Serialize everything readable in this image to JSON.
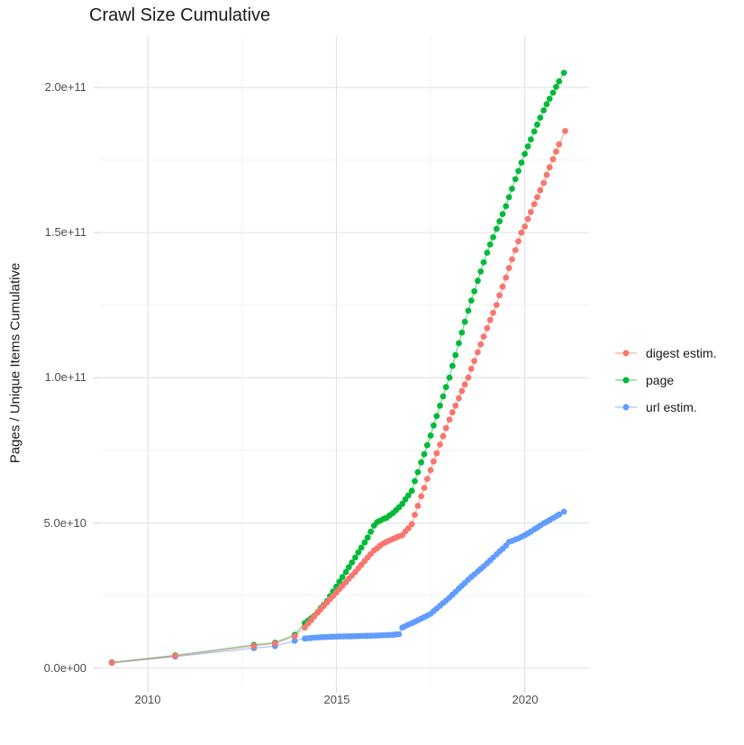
{
  "chart_data": {
    "type": "scatter",
    "title": "Crawl Size Cumulative",
    "xlabel": "",
    "ylabel": "Pages / Unique Items Cumulative",
    "value_unit": "billions (1e9) of pages / unique items",
    "xlim": [
      2008.7,
      2021.73
    ],
    "ylim_e9": [
      -6.6,
      217.7
    ],
    "grid": "on",
    "legend_position": "right",
    "x_ticks": [
      {
        "label": "2010",
        "v": 2010
      },
      {
        "label": "2015",
        "v": 2015
      },
      {
        "label": "2020",
        "v": 2020
      }
    ],
    "y_ticks": [
      {
        "label": "0.0e+00",
        "v": 0
      },
      {
        "label": "5.0e+10",
        "v": 50
      },
      {
        "label": "1.0e+11",
        "v": 100
      },
      {
        "label": "1.5e+11",
        "v": 150
      },
      {
        "label": "2.0e+11",
        "v": 200
      }
    ],
    "series": [
      {
        "name": "digest estim.",
        "color": "#F8766D",
        "points": [
          [
            2009.04,
            1.9
          ],
          [
            2010.72,
            4.2
          ],
          [
            2012.81,
            7.6
          ],
          [
            2013.37,
            8.5
          ],
          [
            2013.89,
            11.0
          ],
          [
            2014.16,
            14.0
          ],
          [
            2014.25,
            15.4
          ],
          [
            2014.33,
            16.6
          ],
          [
            2014.41,
            17.8
          ],
          [
            2014.5,
            19.1
          ],
          [
            2014.58,
            20.3
          ],
          [
            2014.66,
            21.4
          ],
          [
            2014.75,
            22.6
          ],
          [
            2014.83,
            23.8
          ],
          [
            2014.91,
            24.9
          ],
          [
            2015.0,
            26.1
          ],
          [
            2015.08,
            27.3
          ],
          [
            2015.16,
            28.4
          ],
          [
            2015.25,
            29.6
          ],
          [
            2015.33,
            30.8
          ],
          [
            2015.41,
            31.9
          ],
          [
            2015.5,
            33.1
          ],
          [
            2015.58,
            34.4
          ],
          [
            2015.66,
            35.6
          ],
          [
            2015.75,
            36.9
          ],
          [
            2015.83,
            38.1
          ],
          [
            2015.91,
            39.3
          ],
          [
            2016.0,
            40.6
          ],
          [
            2016.08,
            41.3
          ],
          [
            2016.16,
            42.2
          ],
          [
            2016.25,
            43.0
          ],
          [
            2016.33,
            43.5
          ],
          [
            2016.41,
            44.0
          ],
          [
            2016.5,
            44.5
          ],
          [
            2016.58,
            45.0
          ],
          [
            2016.66,
            45.4
          ],
          [
            2016.75,
            45.8
          ],
          [
            2016.83,
            47.1
          ],
          [
            2016.91,
            48.2
          ],
          [
            2017.0,
            49.6
          ],
          [
            2017.08,
            52.8
          ],
          [
            2017.16,
            55.9
          ],
          [
            2017.25,
            59.2
          ],
          [
            2017.33,
            62.1
          ],
          [
            2017.41,
            65.2
          ],
          [
            2017.5,
            68.2
          ],
          [
            2017.58,
            71.2
          ],
          [
            2017.66,
            74.0
          ],
          [
            2017.75,
            77.0
          ],
          [
            2017.83,
            79.9
          ],
          [
            2017.91,
            82.7
          ],
          [
            2018.0,
            85.6
          ],
          [
            2018.08,
            88.1
          ],
          [
            2018.16,
            90.4
          ],
          [
            2018.25,
            93.0
          ],
          [
            2018.33,
            95.4
          ],
          [
            2018.41,
            97.7
          ],
          [
            2018.5,
            100.1
          ],
          [
            2018.58,
            103.1
          ],
          [
            2018.66,
            105.8
          ],
          [
            2018.75,
            108.8
          ],
          [
            2018.83,
            111.5
          ],
          [
            2018.91,
            114.2
          ],
          [
            2019.0,
            117.1
          ],
          [
            2019.08,
            119.9
          ],
          [
            2019.16,
            122.4
          ],
          [
            2019.25,
            125.1
          ],
          [
            2019.33,
            128.4
          ],
          [
            2019.41,
            131.4
          ],
          [
            2019.5,
            134.5
          ],
          [
            2019.58,
            137.8
          ],
          [
            2019.66,
            140.8
          ],
          [
            2019.75,
            144.0
          ],
          [
            2019.83,
            147.0
          ],
          [
            2019.91,
            150.0
          ],
          [
            2020.0,
            152.1
          ],
          [
            2020.08,
            154.7
          ],
          [
            2020.16,
            157.1
          ],
          [
            2020.25,
            159.8
          ],
          [
            2020.33,
            162.2
          ],
          [
            2020.41,
            164.6
          ],
          [
            2020.5,
            167.1
          ],
          [
            2020.58,
            169.9
          ],
          [
            2020.66,
            172.5
          ],
          [
            2020.75,
            175.3
          ],
          [
            2020.83,
            177.9
          ],
          [
            2020.91,
            180.4
          ],
          [
            2021.07,
            185.0
          ]
        ]
      },
      {
        "name": "page",
        "color": "#00BA38",
        "points": [
          [
            2009.04,
            2.0
          ],
          [
            2010.72,
            4.4
          ],
          [
            2012.81,
            8.0
          ],
          [
            2013.37,
            8.8
          ],
          [
            2013.89,
            11.5
          ],
          [
            2014.16,
            15.5
          ],
          [
            2014.25,
            16.4
          ],
          [
            2014.33,
            17.2
          ],
          [
            2014.41,
            18.0
          ],
          [
            2014.5,
            19.3
          ],
          [
            2014.58,
            20.6
          ],
          [
            2014.66,
            21.8
          ],
          [
            2014.75,
            23.1
          ],
          [
            2014.83,
            24.8
          ],
          [
            2014.91,
            26.4
          ],
          [
            2015.0,
            28.1
          ],
          [
            2015.08,
            29.8
          ],
          [
            2015.16,
            31.4
          ],
          [
            2015.25,
            33.1
          ],
          [
            2015.33,
            34.8
          ],
          [
            2015.41,
            36.4
          ],
          [
            2015.5,
            38.1
          ],
          [
            2015.58,
            39.9
          ],
          [
            2015.66,
            41.5
          ],
          [
            2015.75,
            43.3
          ],
          [
            2015.83,
            45.0
          ],
          [
            2015.91,
            47.0
          ],
          [
            2016.0,
            49.1
          ],
          [
            2016.08,
            50.3
          ],
          [
            2016.16,
            50.8
          ],
          [
            2016.25,
            51.4
          ],
          [
            2016.33,
            51.8
          ],
          [
            2016.41,
            52.6
          ],
          [
            2016.5,
            53.4
          ],
          [
            2016.58,
            54.4
          ],
          [
            2016.66,
            55.4
          ],
          [
            2016.75,
            56.6
          ],
          [
            2016.83,
            58.1
          ],
          [
            2016.91,
            59.5
          ],
          [
            2017.0,
            61.1
          ],
          [
            2017.08,
            64.4
          ],
          [
            2017.16,
            67.5
          ],
          [
            2017.25,
            70.9
          ],
          [
            2017.33,
            73.7
          ],
          [
            2017.41,
            76.8
          ],
          [
            2017.5,
            80.1
          ],
          [
            2017.58,
            83.6
          ],
          [
            2017.66,
            86.8
          ],
          [
            2017.75,
            90.4
          ],
          [
            2017.83,
            93.6
          ],
          [
            2017.91,
            96.8
          ],
          [
            2018.0,
            100.1
          ],
          [
            2018.08,
            104.1
          ],
          [
            2018.16,
            107.8
          ],
          [
            2018.25,
            111.9
          ],
          [
            2018.33,
            115.6
          ],
          [
            2018.41,
            119.3
          ],
          [
            2018.5,
            123.1
          ],
          [
            2018.58,
            126.6
          ],
          [
            2018.66,
            129.8
          ],
          [
            2018.75,
            133.4
          ],
          [
            2018.83,
            136.6
          ],
          [
            2018.91,
            139.8
          ],
          [
            2019.0,
            143.1
          ],
          [
            2019.08,
            145.9
          ],
          [
            2019.16,
            148.4
          ],
          [
            2019.25,
            151.3
          ],
          [
            2019.33,
            153.9
          ],
          [
            2019.41,
            156.4
          ],
          [
            2019.5,
            159.1
          ],
          [
            2019.58,
            162.2
          ],
          [
            2019.66,
            165.1
          ],
          [
            2019.75,
            168.4
          ],
          [
            2019.83,
            171.2
          ],
          [
            2019.91,
            174.1
          ],
          [
            2020.0,
            177.1
          ],
          [
            2020.08,
            179.7
          ],
          [
            2020.16,
            182.1
          ],
          [
            2020.25,
            184.8
          ],
          [
            2020.33,
            187.2
          ],
          [
            2020.41,
            189.6
          ],
          [
            2020.5,
            192.1
          ],
          [
            2020.58,
            194.2
          ],
          [
            2020.66,
            196.1
          ],
          [
            2020.75,
            198.2
          ],
          [
            2020.83,
            200.2
          ],
          [
            2020.91,
            202.1
          ],
          [
            2021.04,
            205.0
          ]
        ]
      },
      {
        "name": "url estim.",
        "color": "#619CFF",
        "points": [
          [
            2009.04,
            1.8
          ],
          [
            2010.72,
            4.0
          ],
          [
            2012.81,
            6.9
          ],
          [
            2013.37,
            7.6
          ],
          [
            2013.89,
            9.4
          ],
          [
            2014.16,
            10.2
          ],
          [
            2014.25,
            10.3
          ],
          [
            2014.33,
            10.4
          ],
          [
            2014.41,
            10.5
          ],
          [
            2014.5,
            10.6
          ],
          [
            2014.58,
            10.65
          ],
          [
            2014.66,
            10.7
          ],
          [
            2014.75,
            10.75
          ],
          [
            2014.83,
            10.8
          ],
          [
            2014.91,
            10.85
          ],
          [
            2015.0,
            10.9
          ],
          [
            2015.08,
            10.92
          ],
          [
            2015.16,
            10.94
          ],
          [
            2015.25,
            10.96
          ],
          [
            2015.33,
            10.98
          ],
          [
            2015.41,
            11.0
          ],
          [
            2015.5,
            11.02
          ],
          [
            2015.58,
            11.05
          ],
          [
            2015.66,
            11.08
          ],
          [
            2015.75,
            11.12
          ],
          [
            2015.83,
            11.15
          ],
          [
            2015.91,
            11.18
          ],
          [
            2016.0,
            11.2
          ],
          [
            2016.08,
            11.25
          ],
          [
            2016.16,
            11.3
          ],
          [
            2016.25,
            11.35
          ],
          [
            2016.33,
            11.4
          ],
          [
            2016.41,
            11.45
          ],
          [
            2016.5,
            11.5
          ],
          [
            2016.58,
            11.6
          ],
          [
            2016.66,
            11.7
          ],
          [
            2016.75,
            14.0
          ],
          [
            2016.83,
            14.5
          ],
          [
            2016.91,
            15.0
          ],
          [
            2017.0,
            15.5
          ],
          [
            2017.08,
            16.0
          ],
          [
            2017.16,
            16.5
          ],
          [
            2017.25,
            17.1
          ],
          [
            2017.33,
            17.6
          ],
          [
            2017.41,
            18.1
          ],
          [
            2017.5,
            18.7
          ],
          [
            2017.58,
            19.6
          ],
          [
            2017.66,
            20.5
          ],
          [
            2017.75,
            21.5
          ],
          [
            2017.83,
            22.4
          ],
          [
            2017.91,
            23.3
          ],
          [
            2018.0,
            24.3
          ],
          [
            2018.08,
            25.3
          ],
          [
            2018.16,
            26.3
          ],
          [
            2018.25,
            27.4
          ],
          [
            2018.33,
            28.4
          ],
          [
            2018.41,
            29.4
          ],
          [
            2018.5,
            30.5
          ],
          [
            2018.58,
            31.4
          ],
          [
            2018.66,
            32.3
          ],
          [
            2018.75,
            33.3
          ],
          [
            2018.83,
            34.2
          ],
          [
            2018.91,
            35.1
          ],
          [
            2019.0,
            36.1
          ],
          [
            2019.08,
            37.1
          ],
          [
            2019.16,
            38.1
          ],
          [
            2019.25,
            39.2
          ],
          [
            2019.33,
            40.2
          ],
          [
            2019.41,
            41.1
          ],
          [
            2019.5,
            42.2
          ],
          [
            2019.58,
            43.5
          ],
          [
            2019.66,
            43.8
          ],
          [
            2019.75,
            44.3
          ],
          [
            2019.83,
            44.7
          ],
          [
            2019.91,
            45.2
          ],
          [
            2020.0,
            45.8
          ],
          [
            2020.08,
            46.4
          ],
          [
            2020.16,
            47.0
          ],
          [
            2020.25,
            47.8
          ],
          [
            2020.33,
            48.4
          ],
          [
            2020.41,
            49.1
          ],
          [
            2020.5,
            49.9
          ],
          [
            2020.58,
            50.4
          ],
          [
            2020.66,
            51.0
          ],
          [
            2020.75,
            51.7
          ],
          [
            2020.83,
            52.3
          ],
          [
            2020.91,
            52.9
          ],
          [
            2021.04,
            53.9
          ]
        ]
      }
    ]
  }
}
